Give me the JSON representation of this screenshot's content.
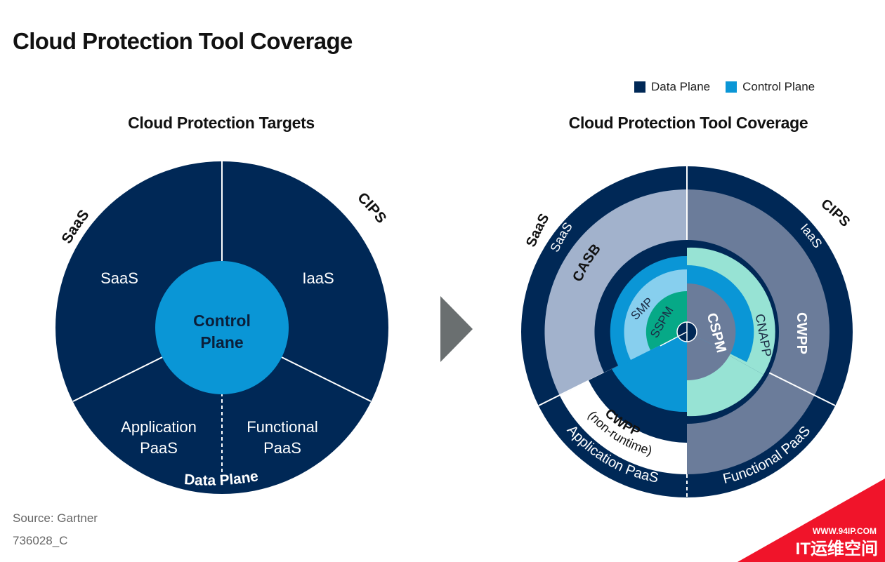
{
  "title": "Cloud Protection Tool Coverage",
  "legend": {
    "data_plane": "Data Plane",
    "control_plane": "Control Plane"
  },
  "colors": {
    "navy": "#002856",
    "control": "#0a96d6",
    "light_gray_blue": "#a2b2cc",
    "slate": "#6b7c9a",
    "mint": "#97e3d4",
    "light_blue": "#87cfee",
    "teal": "#06a987",
    "watermark_red": "#f0142a"
  },
  "source": "Source: Gartner",
  "doc_id": "736028_C",
  "chart_data": [
    {
      "type": "pie",
      "title": "Cloud Protection Targets",
      "categories": [
        "SaaS",
        "IaaS",
        "Functional PaaS",
        "Application PaaS"
      ],
      "outer_labels": {
        "saas": "SaaS",
        "cips": "CIPS"
      },
      "center_label_line1": "Control",
      "center_label_line2": "Plane",
      "slice_labels": {
        "saas": "SaaS",
        "iaas": "IaaS",
        "app_paas_line1": "Application",
        "app_paas_line2": "PaaS",
        "func_paas_line1": "Functional",
        "func_paas_line2": "PaaS"
      },
      "bottom_label": "Data Plane"
    },
    {
      "type": "pie",
      "title": "Cloud Protection Tool Coverage",
      "outer_labels": {
        "saas": "SaaS",
        "cips": "CIPS"
      },
      "ring_labels": {
        "saas": "SaaS",
        "iaas": "IaaS",
        "application_paas": "Application PaaS",
        "functional_paas": "Functional PaaS"
      },
      "tools": {
        "casb": "CASB",
        "smp": "SMP",
        "sspm": "SSPM",
        "cspm": "CSPM",
        "cnapp": "CNAPP",
        "cwpp": "CWPP",
        "cwpp_nr_title": "CWPP",
        "cwpp_nr_sub": "(non-runtime)"
      }
    }
  ],
  "watermark": {
    "url": "WWW.94IP.COM",
    "text": "IT运维空间"
  }
}
